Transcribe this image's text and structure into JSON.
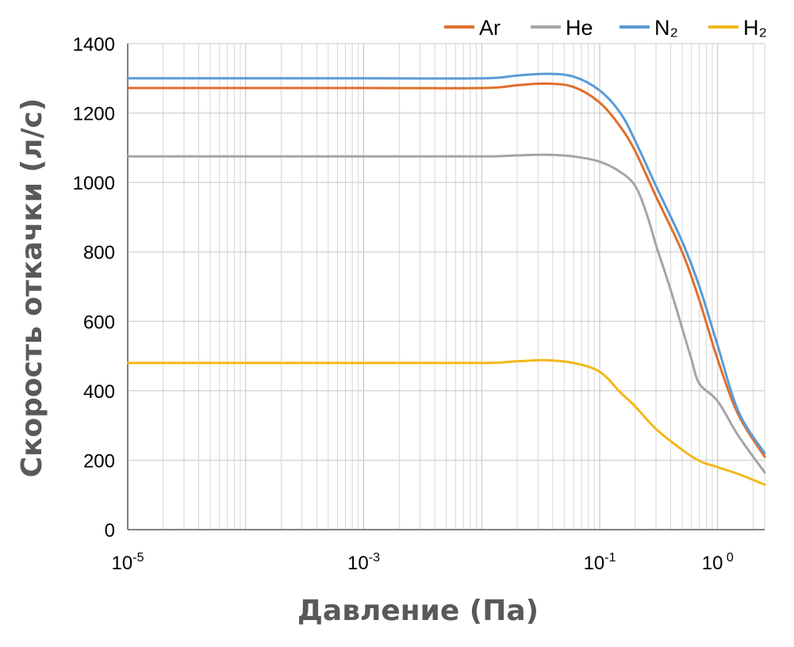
{
  "chart_data": {
    "type": "line",
    "title": "",
    "xlabel": "Давление (Па)",
    "ylabel": "Скорость откачки (л/с)",
    "x_scale": "log",
    "xlim": [
      1e-05,
      2.5
    ],
    "ylim": [
      0,
      1400
    ],
    "grid": true,
    "legend_position": "top-right",
    "yticks": [
      0,
      200,
      400,
      600,
      800,
      1000,
      1200,
      1400
    ],
    "xticks": [
      {
        "value": 1e-05,
        "base": "10",
        "exp": "-5"
      },
      {
        "value": 0.001,
        "base": "10",
        "exp": "-3"
      },
      {
        "value": 0.1,
        "base": "10",
        "exp": "-1"
      },
      {
        "value": 1,
        "base": "10",
        "exp": " 0"
      }
    ],
    "series": [
      {
        "name": "Ar",
        "color": "#e06f2d",
        "x": [
          1e-05,
          0.001,
          0.01,
          0.02,
          0.035,
          0.06,
          0.1,
          0.15,
          0.2,
          0.3,
          0.5,
          0.7,
          1.0,
          1.5,
          2.5
        ],
        "y": [
          1272,
          1272,
          1272,
          1280,
          1285,
          1275,
          1230,
          1160,
          1090,
          960,
          800,
          660,
          490,
          330,
          210
        ]
      },
      {
        "name": "He",
        "color": "#a5a5a5",
        "x": [
          1e-05,
          0.001,
          0.01,
          0.02,
          0.035,
          0.06,
          0.1,
          0.15,
          0.2,
          0.25,
          0.3,
          0.4,
          0.5,
          0.6,
          0.7,
          1.0,
          1.5,
          2.5
        ],
        "y": [
          1075,
          1075,
          1075,
          1078,
          1080,
          1075,
          1060,
          1030,
          990,
          910,
          820,
          690,
          580,
          490,
          420,
          370,
          270,
          165
        ]
      },
      {
        "name": "N₂",
        "color": "#5b9bd5",
        "x": [
          1e-05,
          0.001,
          0.01,
          0.02,
          0.035,
          0.06,
          0.1,
          0.15,
          0.2,
          0.3,
          0.5,
          0.7,
          1.0,
          1.5,
          2.5
        ],
        "y": [
          1300,
          1300,
          1300,
          1308,
          1313,
          1305,
          1265,
          1200,
          1120,
          990,
          830,
          700,
          530,
          340,
          220
        ]
      },
      {
        "name": "H₂",
        "color": "#f4b81c",
        "x": [
          1e-05,
          0.001,
          0.01,
          0.02,
          0.035,
          0.06,
          0.1,
          0.15,
          0.2,
          0.3,
          0.5,
          0.7,
          1.0,
          1.5,
          2.5
        ],
        "y": [
          480,
          480,
          480,
          485,
          488,
          480,
          455,
          395,
          355,
          290,
          230,
          198,
          180,
          160,
          130
        ]
      }
    ]
  }
}
